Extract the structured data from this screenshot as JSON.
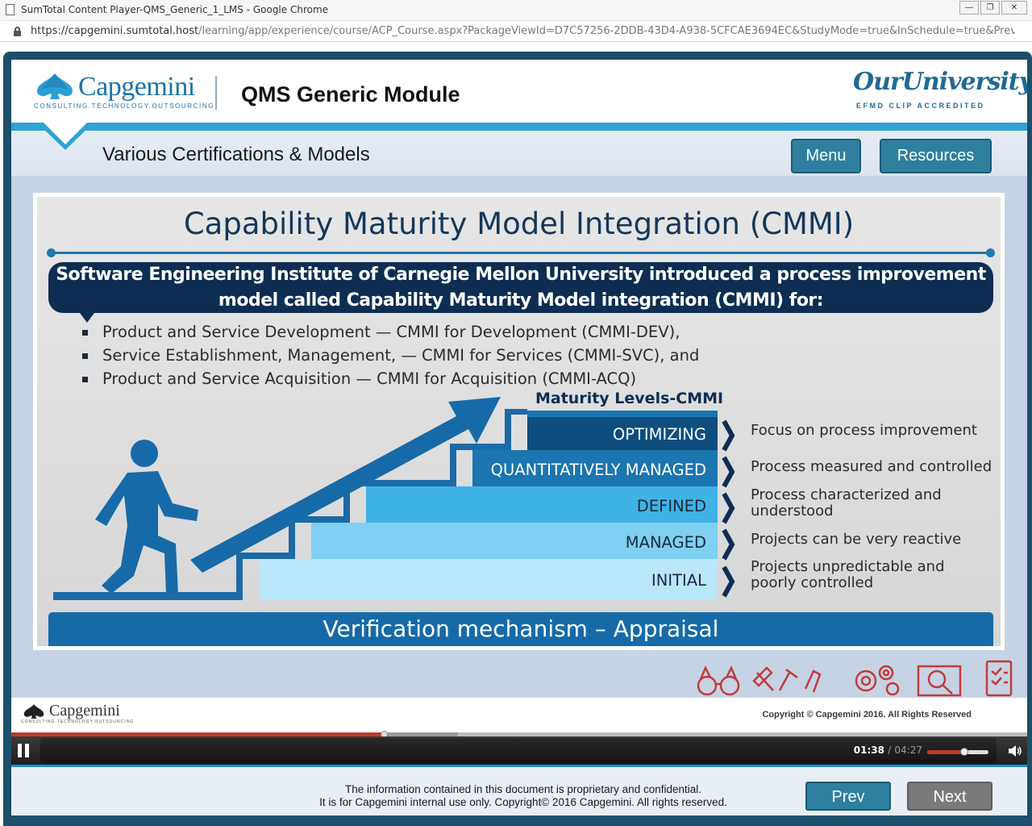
{
  "browser": {
    "window_title": "SumTotal Content Player-QMS_Generic_1_LMS - Google Chrome",
    "url_host": "https://capgemini.sumtotal.host",
    "url_path": "/learning/app/experience/course/ACP_Course.aspx?PackageViewId=D7C57256-2DDB-43D4-A938-5CFCAE3694EC&StudyMode=true&InSchedule=true&Preview..."
  },
  "header": {
    "logo_text": "Capgemini",
    "logo_tagline": "CONSULTING.TECHNOLOGY.OUTSOURCING",
    "module_title": "QMS Generic Module",
    "partner_logo": "OurUniversity",
    "partner_tagline": "EFMD CLIP ACCREDITED"
  },
  "subbar": {
    "section_title": "Various Certifications & Models",
    "menu_label": "Menu",
    "resources_label": "Resources"
  },
  "slide": {
    "title": "Capability Maturity Model Integration (CMMI)",
    "banner_line1": "Software Engineering Institute of Carnegie Mellon University introduced a process improvement",
    "banner_line2": "model called Capability Maturity Model integration (CMMI) for:",
    "bullets": [
      "Product and Service Development — CMMI for Development (CMMI-DEV),",
      "Service Establishment, Management, — CMMI for Services (CMMI-SVC), and",
      "Product and Service Acquisition — CMMI for Acquisition (CMMI-ACQ)"
    ],
    "maturity_title": "Maturity Levels-CMMI",
    "levels": [
      {
        "name": "OPTIMIZING",
        "description": "Focus on process improvement"
      },
      {
        "name": "QUANTITATIVELY MANAGED",
        "description": "Process measured and controlled"
      },
      {
        "name": "DEFINED",
        "description": "Process characterized and understood"
      },
      {
        "name": "MANAGED",
        "description": "Projects can be very reactive"
      },
      {
        "name": "INITIAL",
        "description": "Projects unpredictable and poorly controlled"
      }
    ],
    "verification": "Verification mechanism – Appraisal"
  },
  "footer": {
    "logo_text": "Capgemini",
    "logo_tagline": "CONSULTING.TECHNOLOGY.OUTSOURCING",
    "copyright": "Copyright © Capgemini 2016. All Rights Reserved"
  },
  "player": {
    "current_time": "01:38",
    "separator": "/",
    "total_time": "04:27",
    "progress_fraction": 0.367,
    "buffered_fraction": 0.44,
    "volume_fraction": 0.6
  },
  "bottom": {
    "disclaimer_line1": "The information contained in this document is proprietary and confidential.",
    "disclaimer_line2": "It is for Capgemini internal use only. Copyright© 2016 Capgemini. All rights reserved.",
    "prev_label": "Prev",
    "next_label": "Next"
  },
  "colors": {
    "accent": "#2fa4d4",
    "button": "#2e7f9f",
    "banner": "#0d2e52",
    "progress": "#c0392b"
  }
}
